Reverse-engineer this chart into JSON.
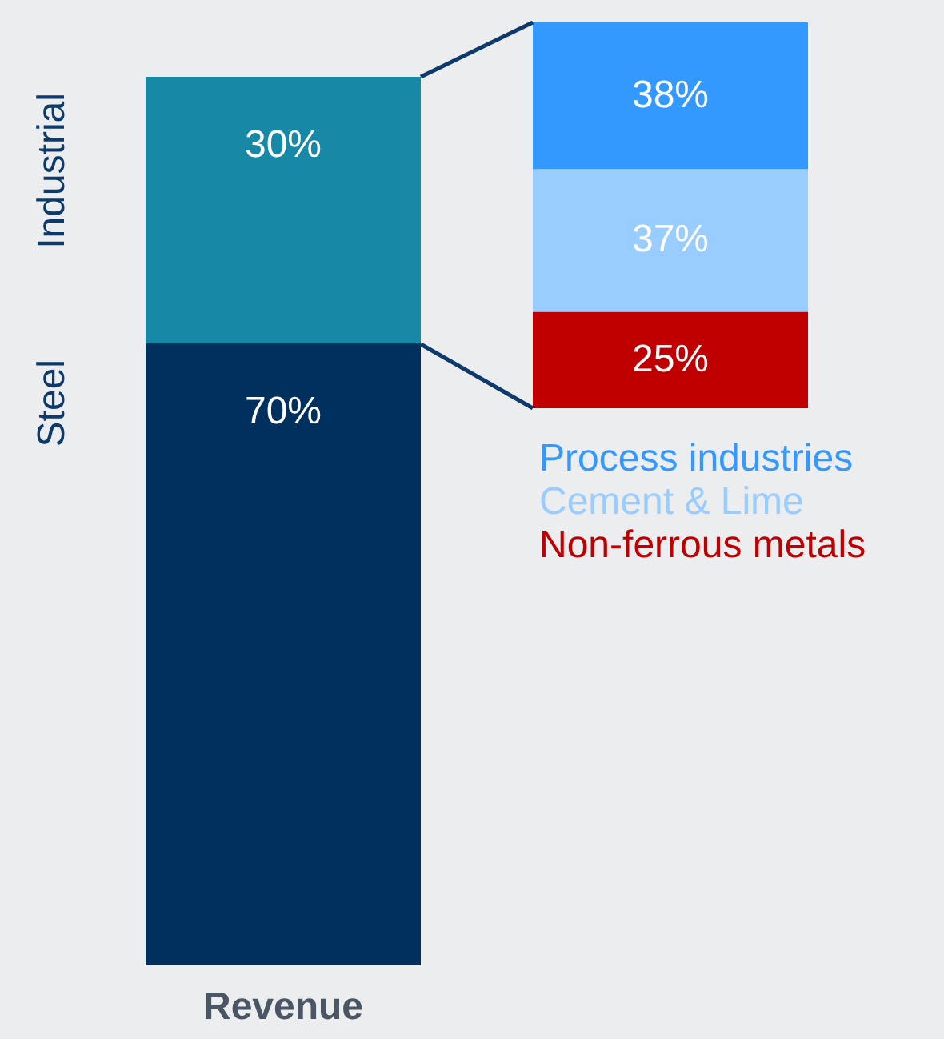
{
  "chart_data": [
    {
      "type": "bar",
      "stacked": true,
      "categories": [
        "Revenue"
      ],
      "data_labels": true,
      "series": [
        {
          "name": "Steel",
          "color": "#00305e",
          "values": [
            70
          ],
          "value_labels": [
            "70%"
          ]
        },
        {
          "name": "Industrial",
          "color": "#1789a7",
          "values": [
            30
          ],
          "value_labels": [
            "30%"
          ]
        }
      ]
    },
    {
      "type": "bar",
      "stacked": true,
      "categories": [
        null
      ],
      "data_labels": true,
      "series": [
        {
          "name": "Non-ferrous metals",
          "color": "#c00000",
          "values": [
            25
          ],
          "value_labels": [
            "25%"
          ]
        },
        {
          "name": "Cement & Lime",
          "color": "#99ccff",
          "values": [
            37
          ],
          "value_labels": [
            "37%"
          ]
        },
        {
          "name": "Process industries",
          "color": "#3399ff",
          "values": [
            38
          ],
          "value_labels": [
            "38%"
          ]
        }
      ]
    }
  ]
}
